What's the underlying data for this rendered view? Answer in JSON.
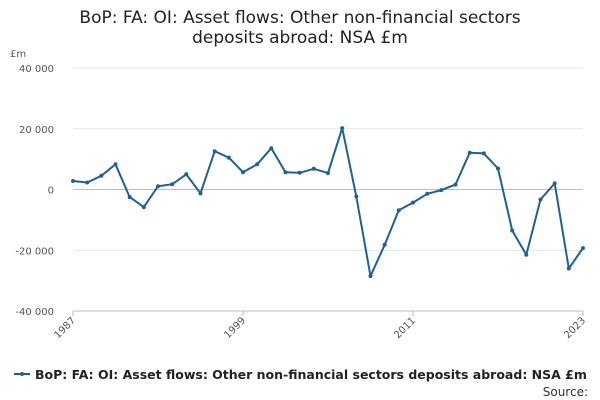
{
  "chart_data": {
    "type": "line",
    "title_lines": [
      "BoP: FA: OI: Asset flows: Other non-financial sectors",
      "deposits abroad: NSA £m"
    ],
    "unit_label": "£m",
    "ylim": [
      -40000,
      40000
    ],
    "yticks": [
      40000,
      20000,
      0,
      -20000,
      -40000
    ],
    "ytick_labels": [
      "40 000",
      "20 000",
      "0",
      "-20 000",
      "-40 000"
    ],
    "xlim": [
      1987,
      2023
    ],
    "xtick_labels": [
      "1987",
      "1999",
      "2011",
      "2023"
    ],
    "grid": true,
    "legend_position": "bottom",
    "series": [
      {
        "name": "BoP: FA: OI: Asset flows: Other non-financial sectors deposits abroad: NSA £m",
        "color": "#206095",
        "x": [
          1987,
          1988,
          1989,
          1990,
          1991,
          1992,
          1993,
          1994,
          1995,
          1996,
          1997,
          1998,
          1999,
          2000,
          2001,
          2002,
          2003,
          2004,
          2005,
          2006,
          2007,
          2008,
          2009,
          2010,
          2011,
          2012,
          2013,
          2014,
          2015,
          2016,
          2017,
          2018,
          2019,
          2020,
          2021,
          2022,
          2023
        ],
        "values": [
          2800,
          2300,
          4500,
          8300,
          -2500,
          -5800,
          1100,
          1700,
          5000,
          -1300,
          12600,
          10500,
          5700,
          8300,
          13600,
          5700,
          5500,
          6800,
          5400,
          20200,
          -2300,
          -28500,
          -18200,
          -6800,
          -4300,
          -1400,
          -200,
          1600,
          12100,
          11900,
          6900,
          -13500,
          -21500,
          -3300,
          2000,
          -26000,
          -19300
        ]
      }
    ]
  },
  "footer": {
    "source_label": "Source:"
  }
}
